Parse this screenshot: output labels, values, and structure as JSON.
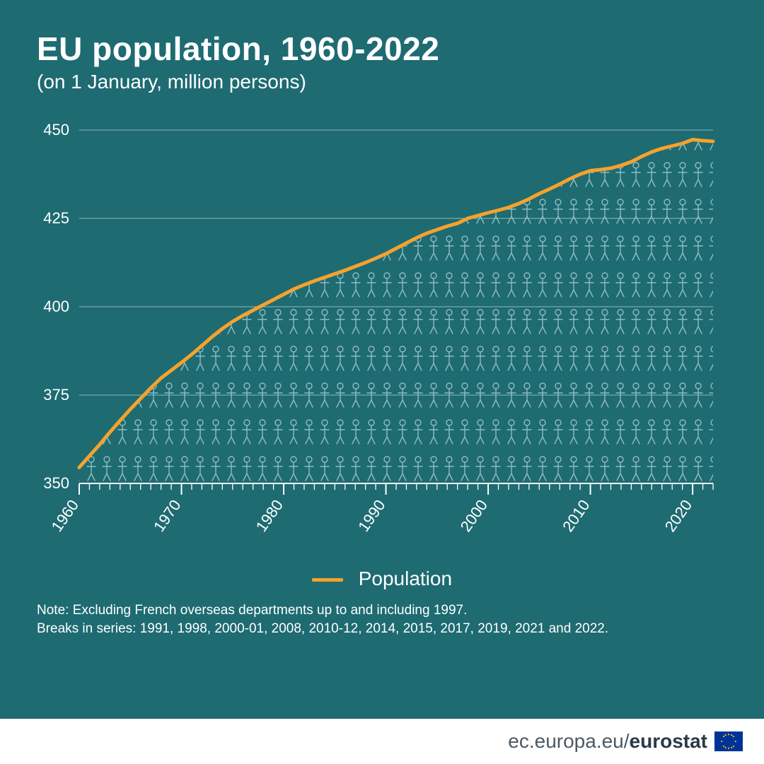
{
  "title": "EU population, 1960-2022",
  "subtitle": "(on 1 January, million persons)",
  "legend_label": "Population",
  "note_line1": "Note: Excluding French overseas departments up to and including 1997.",
  "note_line2": "Breaks in series: 1991, 1998, 2000-01, 2008, 2010-12, 2014, 2015, 2017, 2019, 2021 and 2022.",
  "footer_text_plain": "ec.europa.eu/",
  "footer_text_bold": "eurostat",
  "chart": {
    "type": "line-area",
    "x_start": 1960,
    "x_end": 2022,
    "x_major_labels": [
      1960,
      1970,
      1980,
      1990,
      2000,
      2010,
      2020
    ],
    "x_minor_step": 1,
    "y_min": 350,
    "y_max": 450,
    "y_tick_step": 25,
    "y_ticks": [
      350,
      375,
      400,
      425,
      450
    ],
    "line_color": "#f5a22d",
    "line_width": 5,
    "grid_color": "#8fb8bc",
    "grid_width": 1,
    "axis_color": "#ffffff",
    "axis_width": 2,
    "tick_color": "#ffffff",
    "axis_label_color": "#ffffff",
    "axis_label_fontsize": 22,
    "background_color": "#1e6b72",
    "fill_pattern_color": "#9ac4c8",
    "series": [
      {
        "x": 1960,
        "y": 354.5
      },
      {
        "x": 1961,
        "y": 357.8
      },
      {
        "x": 1962,
        "y": 361.0
      },
      {
        "x": 1963,
        "y": 364.5
      },
      {
        "x": 1964,
        "y": 367.8
      },
      {
        "x": 1965,
        "y": 371.0
      },
      {
        "x": 1966,
        "y": 374.0
      },
      {
        "x": 1967,
        "y": 377.0
      },
      {
        "x": 1968,
        "y": 379.8
      },
      {
        "x": 1969,
        "y": 382.0
      },
      {
        "x": 1970,
        "y": 384.2
      },
      {
        "x": 1971,
        "y": 386.5
      },
      {
        "x": 1972,
        "y": 389.0
      },
      {
        "x": 1973,
        "y": 391.5
      },
      {
        "x": 1974,
        "y": 393.8
      },
      {
        "x": 1975,
        "y": 395.8
      },
      {
        "x": 1976,
        "y": 397.5
      },
      {
        "x": 1977,
        "y": 399.0
      },
      {
        "x": 1978,
        "y": 400.5
      },
      {
        "x": 1979,
        "y": 402.0
      },
      {
        "x": 1980,
        "y": 403.5
      },
      {
        "x": 1981,
        "y": 405.0
      },
      {
        "x": 1982,
        "y": 406.2
      },
      {
        "x": 1983,
        "y": 407.3
      },
      {
        "x": 1984,
        "y": 408.3
      },
      {
        "x": 1985,
        "y": 409.3
      },
      {
        "x": 1986,
        "y": 410.3
      },
      {
        "x": 1987,
        "y": 411.4
      },
      {
        "x": 1988,
        "y": 412.5
      },
      {
        "x": 1989,
        "y": 413.7
      },
      {
        "x": 1990,
        "y": 415.0
      },
      {
        "x": 1991,
        "y": 416.5
      },
      {
        "x": 1992,
        "y": 418.0
      },
      {
        "x": 1993,
        "y": 419.5
      },
      {
        "x": 1994,
        "y": 420.8
      },
      {
        "x": 1995,
        "y": 421.8
      },
      {
        "x": 1996,
        "y": 422.8
      },
      {
        "x": 1997,
        "y": 423.6
      },
      {
        "x": 1998,
        "y": 425.0
      },
      {
        "x": 1999,
        "y": 425.8
      },
      {
        "x": 2000,
        "y": 426.6
      },
      {
        "x": 2001,
        "y": 427.3
      },
      {
        "x": 2002,
        "y": 428.1
      },
      {
        "x": 2003,
        "y": 429.2
      },
      {
        "x": 2004,
        "y": 430.5
      },
      {
        "x": 2005,
        "y": 432.0
      },
      {
        "x": 2006,
        "y": 433.3
      },
      {
        "x": 2007,
        "y": 434.7
      },
      {
        "x": 2008,
        "y": 436.2
      },
      {
        "x": 2009,
        "y": 437.5
      },
      {
        "x": 2010,
        "y": 438.5
      },
      {
        "x": 2011,
        "y": 438.8
      },
      {
        "x": 2012,
        "y": 439.2
      },
      {
        "x": 2013,
        "y": 440.0
      },
      {
        "x": 2014,
        "y": 441.0
      },
      {
        "x": 2015,
        "y": 442.5
      },
      {
        "x": 2016,
        "y": 443.8
      },
      {
        "x": 2017,
        "y": 444.8
      },
      {
        "x": 2018,
        "y": 445.5
      },
      {
        "x": 2019,
        "y": 446.2
      },
      {
        "x": 2020,
        "y": 447.3
      },
      {
        "x": 2021,
        "y": 447.0
      },
      {
        "x": 2022,
        "y": 446.8
      }
    ]
  }
}
